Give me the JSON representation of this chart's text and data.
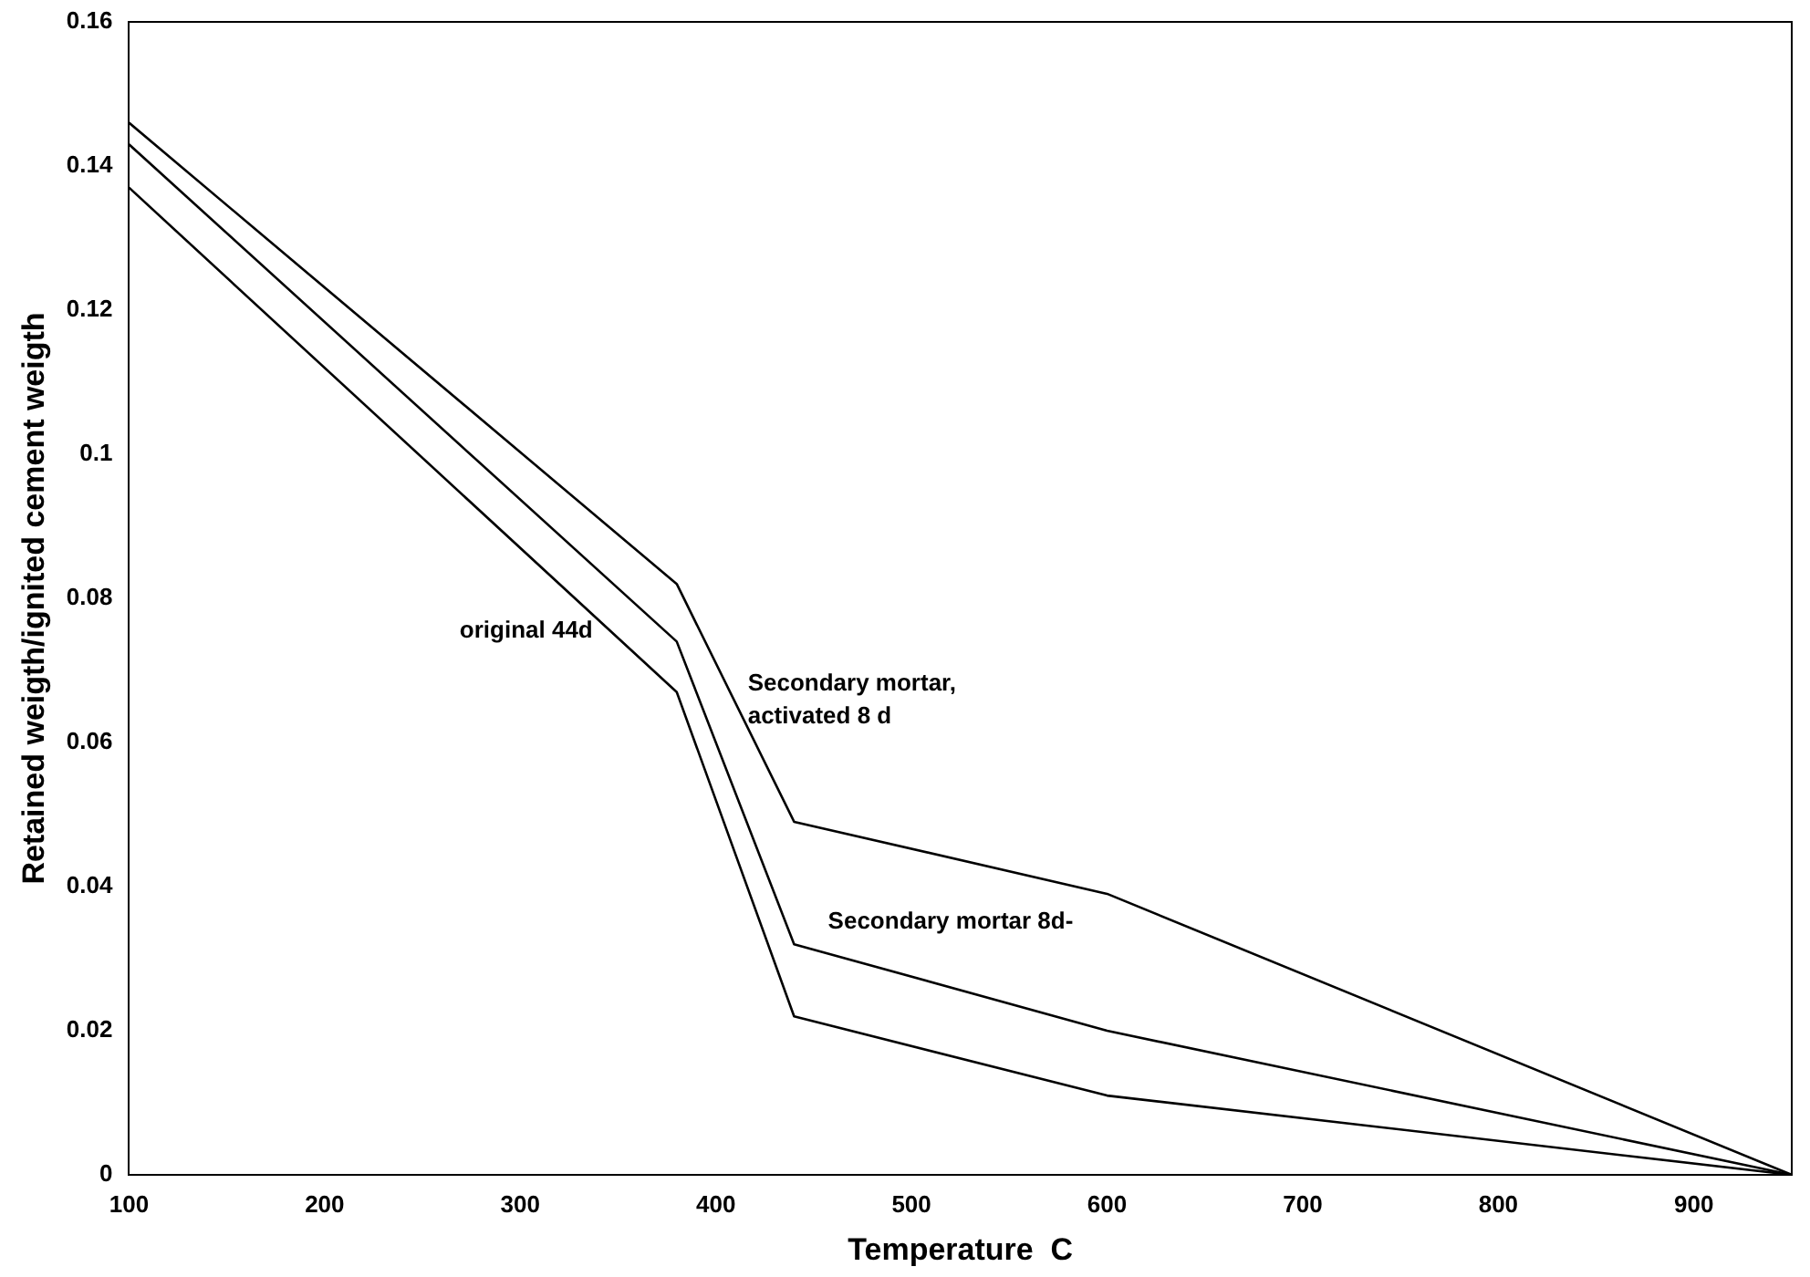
{
  "chart_data": {
    "type": "line",
    "xlabel": "Temperature  C",
    "ylabel": "Retained weigth/ignited cement weigth",
    "xlim": [
      100,
      950
    ],
    "xticks": [
      100,
      200,
      300,
      400,
      500,
      600,
      700,
      800,
      900
    ],
    "ylim": [
      0,
      0.16
    ],
    "yticks": [
      0,
      0.02,
      0.04,
      {
        "value": 0.06,
        "label": "0.06"
      },
      0.08,
      0.1,
      0.12,
      0.14,
      0.16
    ],
    "x": [
      100,
      380,
      440,
      600,
      950
    ],
    "series": [
      {
        "name": "Secondary mortar,\nactivated 8 d",
        "color": "#000000",
        "values": [
          0.146,
          0.082,
          0.049,
          0.039,
          0
        ]
      },
      {
        "name": "Secondary mortar 8d-",
        "color": "#000000",
        "values": [
          0.143,
          0.074,
          0.032,
          0.02,
          0
        ]
      },
      {
        "name": "original 44d",
        "color": "#000000",
        "values": [
          0.137,
          0.067,
          0.022,
          0.011,
          0
        ]
      }
    ],
    "grid": false,
    "legend": false,
    "marker": "none",
    "line_style": "solid"
  }
}
